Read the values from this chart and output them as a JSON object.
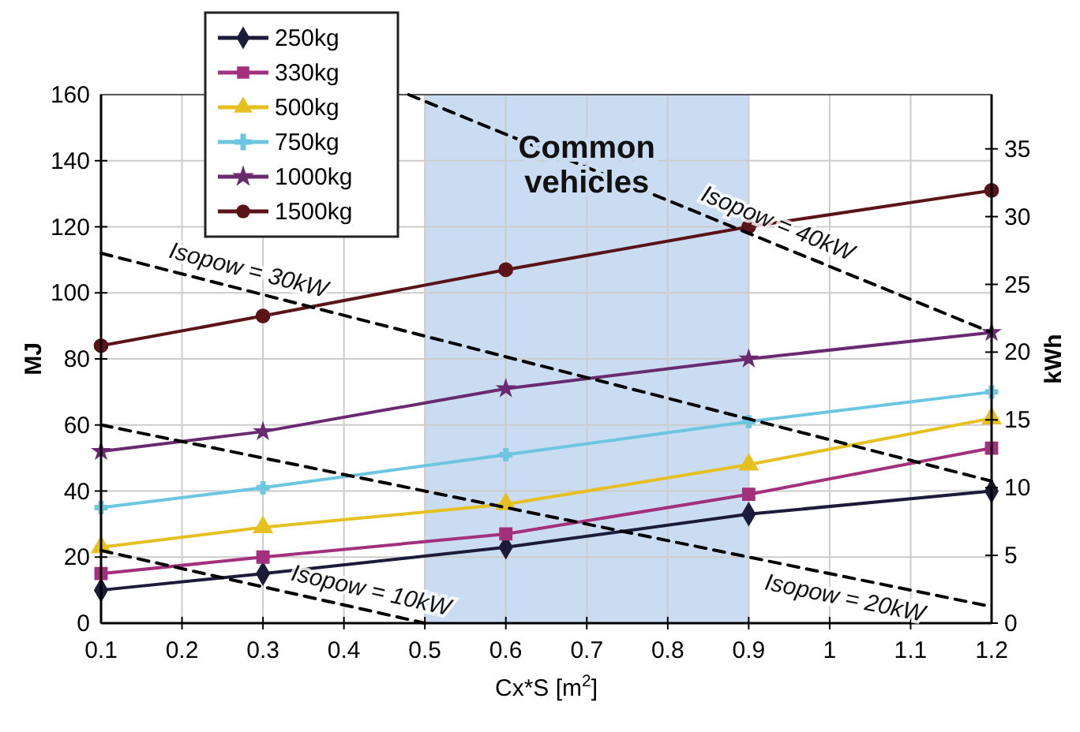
{
  "chart_data": {
    "type": "line",
    "xlabel": "Cx*S [m$^{2}$]",
    "ylabel": "MJ",
    "y2label": "kWh",
    "x": [
      0.1,
      0.3,
      0.6,
      0.9,
      1.2
    ],
    "series": [
      {
        "name": "250kg",
        "color": "#1c1c3a",
        "marker": "diamond",
        "values": [
          10,
          15,
          23,
          33,
          40
        ]
      },
      {
        "name": "330kg",
        "color": "#a3307c",
        "marker": "square",
        "values": [
          15,
          20,
          27,
          39,
          53
        ]
      },
      {
        "name": "500kg",
        "color": "#e6c021",
        "marker": "triangle",
        "values": [
          23,
          29,
          36,
          48,
          62
        ]
      },
      {
        "name": "750kg",
        "color": "#6cc6e0",
        "marker": "cross",
        "values": [
          35,
          41,
          51,
          61,
          70
        ]
      },
      {
        "name": "1000kg",
        "color": "#6a2a70",
        "marker": "star",
        "values": [
          52,
          58,
          71,
          80,
          88
        ]
      },
      {
        "name": "1500kg",
        "color": "#5a1418",
        "marker": "circle",
        "values": [
          84,
          93,
          107,
          120,
          131
        ]
      },
      {
        "type": "line",
        "color": "#000000",
        "marker": "none",
        "line_style": "dashed",
        "x": [
          0.1,
          0.5
        ],
        "values": [
          22,
          0
        ]
      },
      {
        "type": "line",
        "color": "#000000",
        "marker": "none",
        "line_style": "dashed",
        "x": [
          0.1,
          1.2
        ],
        "values": [
          60,
          5
        ]
      },
      {
        "type": "line",
        "color": "#000000",
        "marker": "none",
        "line_style": "dashed",
        "x": [
          0.1,
          1.2
        ],
        "values": [
          112,
          43
        ]
      },
      {
        "type": "line",
        "color": "#000000",
        "marker": "none",
        "line_style": "dashed",
        "x": [
          0.48,
          1.2
        ],
        "values": [
          160,
          88
        ]
      }
    ],
    "xlim": [
      0.1,
      1.2
    ],
    "xticks": [
      0.1,
      0.2,
      0.3,
      0.4,
      0.5,
      0.6,
      0.7,
      0.8,
      0.9,
      1,
      1.1,
      1.2
    ],
    "ylim": [
      0,
      160
    ],
    "yticks": [
      0,
      20,
      40,
      60,
      80,
      100,
      120,
      140,
      160
    ],
    "y2lim": [
      0,
      39
    ],
    "y2ticks": [
      0,
      5,
      10,
      15,
      20,
      25,
      30,
      35
    ],
    "bands": [
      {
        "axis": "x",
        "from": 0.5,
        "to": 0.9,
        "label": "Common vehicles",
        "color": "#c9dcf2"
      }
    ],
    "annotations": [
      "Isopow = 10kW",
      "Isopow = 20kW",
      "Isopow = 30kW",
      "Isopow = 40kW"
    ],
    "grid": true,
    "legend": "top left"
  }
}
